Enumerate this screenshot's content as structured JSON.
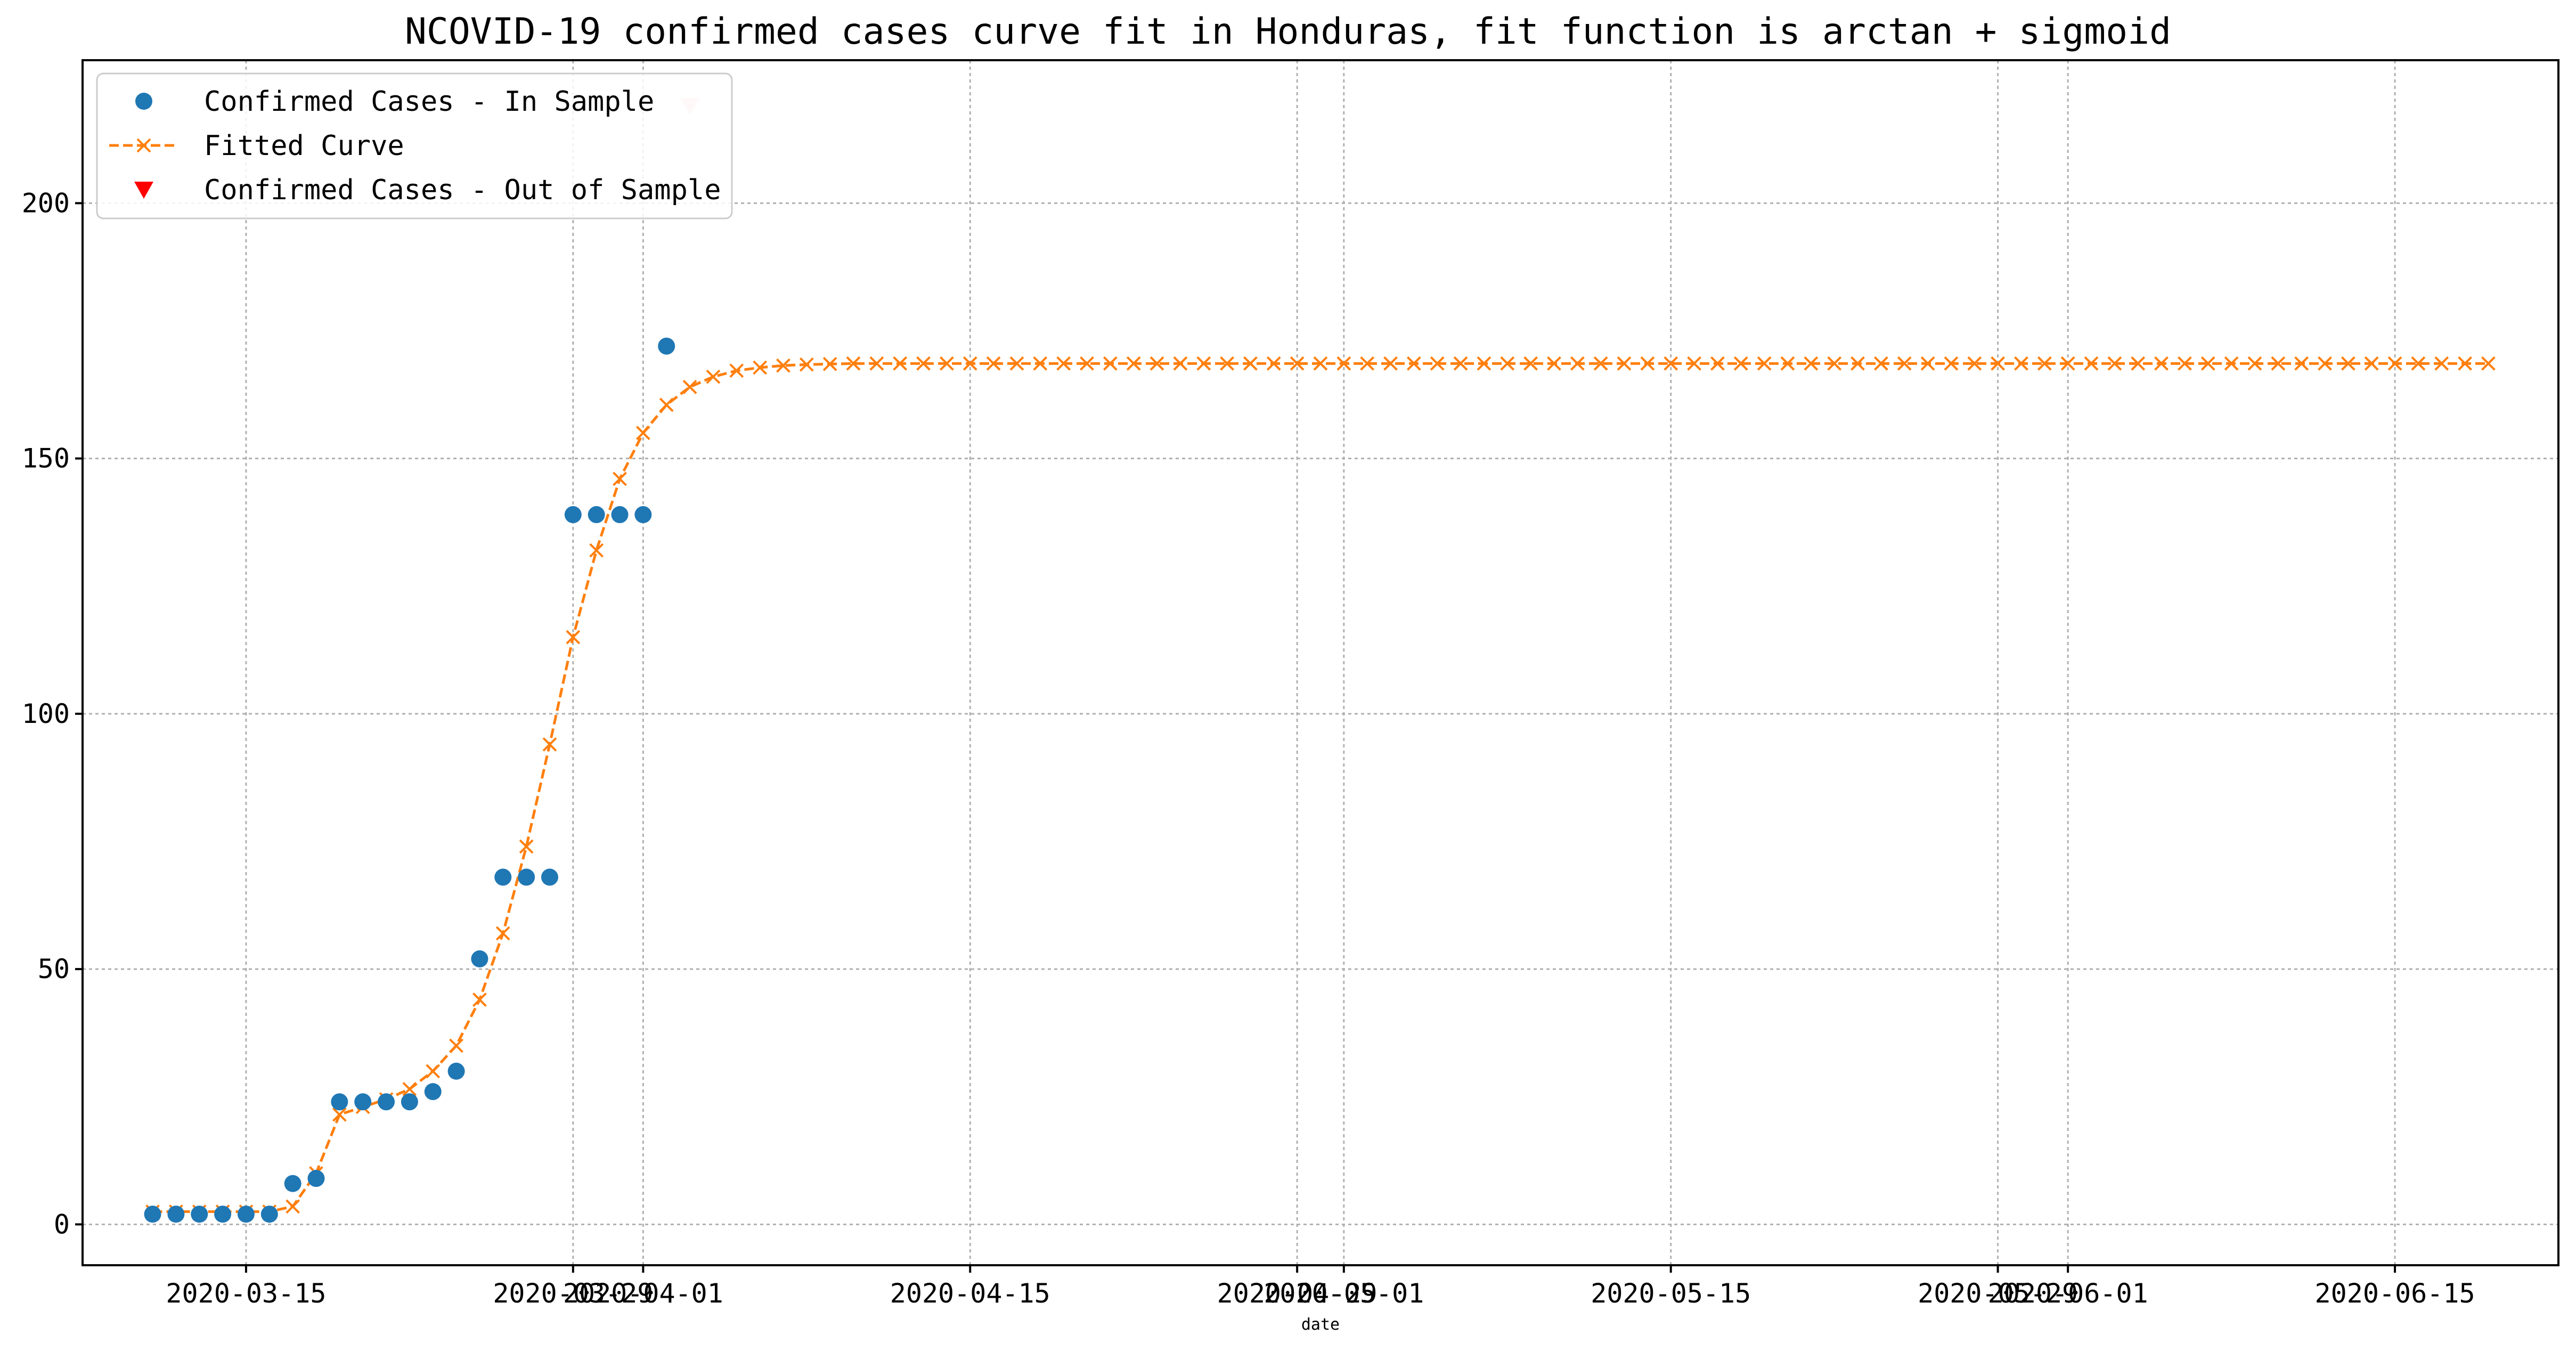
{
  "chart_data": {
    "type": "line",
    "title": "NCOVID-19 confirmed cases curve fit in Honduras, fit function is arctan + sigmoid",
    "xlabel": "date",
    "ylabel": "",
    "xlim": [
      "2020-03-08",
      "2020-06-22"
    ],
    "ylim": [
      -8,
      228
    ],
    "grid": true,
    "legend_position": "upper left",
    "x_ticks": [
      {
        "date": "2020-03-15",
        "label": "2020-03-15"
      },
      {
        "date": "2020-03-29",
        "label": "2020-03-29"
      },
      {
        "date": "2020-04-01",
        "label": "2020-04-01"
      },
      {
        "date": "2020-04-15",
        "label": "2020-04-15"
      },
      {
        "date": "2020-04-29",
        "label": "2020-04-29"
      },
      {
        "date": "2020-05-01",
        "label": "2020-05-01"
      },
      {
        "date": "2020-05-15",
        "label": "2020-05-15"
      },
      {
        "date": "2020-05-29",
        "label": "2020-05-29"
      },
      {
        "date": "2020-06-01",
        "label": "2020-06-01"
      },
      {
        "date": "2020-06-15",
        "label": "2020-06-15"
      }
    ],
    "y_ticks": [
      0,
      50,
      100,
      150,
      200
    ],
    "series": [
      {
        "name": "Confirmed Cases - In Sample",
        "kind": "scatter",
        "marker": "circle",
        "color": "#1f77b4",
        "start_date": "2020-03-11",
        "values": [
          2,
          2,
          2,
          2,
          2,
          2,
          8,
          9,
          24,
          24,
          24,
          24,
          26,
          30,
          52,
          68,
          68,
          68,
          139,
          139,
          139,
          139,
          172
        ]
      },
      {
        "name": "Fitted Curve",
        "kind": "line",
        "marker": "x",
        "linestyle": "dashed",
        "color": "#ff7f0e",
        "start_date": "2020-03-11",
        "values": [
          2.5,
          2.5,
          2.5,
          2.5,
          2.5,
          2.5,
          3.5,
          10,
          21.5,
          23,
          24.5,
          26.5,
          30,
          35,
          44,
          57,
          74,
          94,
          115,
          132,
          146,
          155,
          160.5,
          164,
          166,
          167.2,
          167.8,
          168.2,
          168.4,
          168.5,
          168.6,
          168.6,
          168.6,
          168.6,
          168.6,
          168.6,
          168.6,
          168.6,
          168.6,
          168.6,
          168.6,
          168.6,
          168.6,
          168.6,
          168.6,
          168.6,
          168.6,
          168.6,
          168.6,
          168.6,
          168.6,
          168.6,
          168.6,
          168.6,
          168.6,
          168.6,
          168.6,
          168.6,
          168.6,
          168.6,
          168.6,
          168.6,
          168.6,
          168.6,
          168.6,
          168.6,
          168.6,
          168.6,
          168.6,
          168.6,
          168.6,
          168.6,
          168.6,
          168.6,
          168.6,
          168.6,
          168.6,
          168.6,
          168.6,
          168.6,
          168.6,
          168.6,
          168.6,
          168.6,
          168.6,
          168.6,
          168.6,
          168.6,
          168.6,
          168.6,
          168.6,
          168.6,
          168.6,
          168.6,
          168.6,
          168.6,
          168.6,
          168.6,
          168.6,
          168.6,
          168.6
        ]
      },
      {
        "name": "Confirmed Cases - Out of Sample",
        "kind": "scatter",
        "marker": "triangle-down",
        "color": "#ff0000",
        "alpha": 0.2,
        "points": [
          {
            "x": "2020-04-03",
            "y": 219
          }
        ]
      }
    ]
  }
}
